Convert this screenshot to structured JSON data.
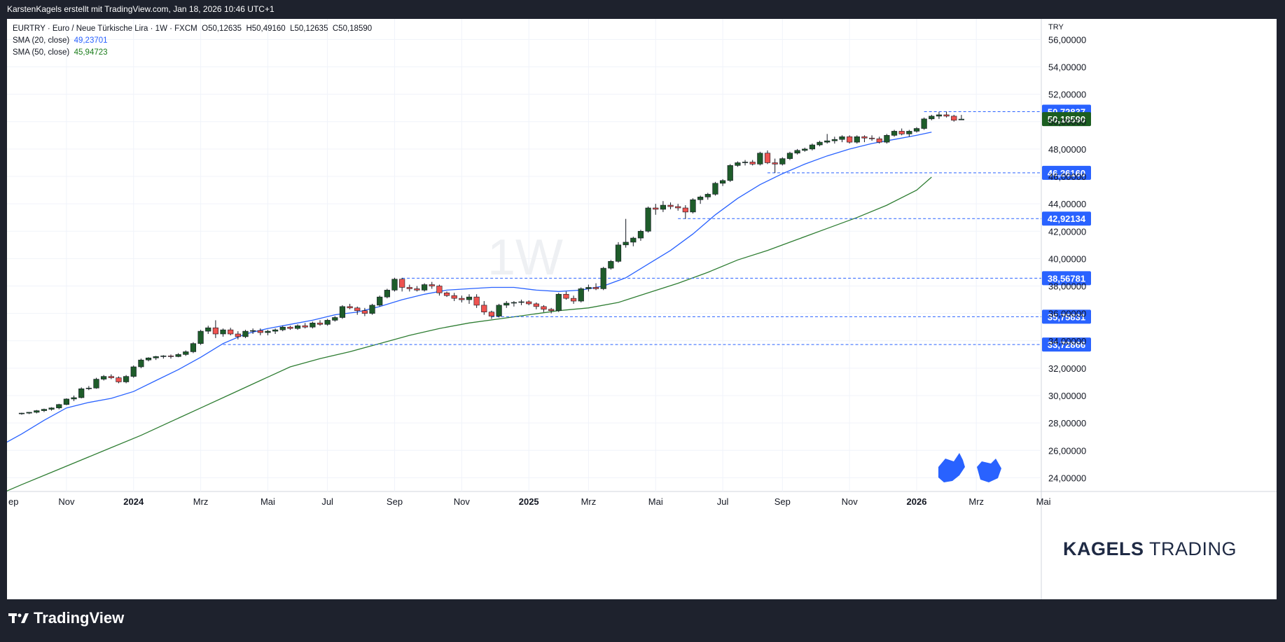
{
  "header": {
    "credit": "KarstenKagels erstellt mit TradingView.com, Jan 18, 2026 10:46 UTC+1"
  },
  "legend": {
    "symbol": "EURTRY · Euro  / Neue Türkische Lira · 1W · FXCM",
    "open": "O50,12635",
    "high": "H50,49160",
    "low": "L50,12635",
    "close": "C50,18590",
    "sma20_label": "SMA (20, close)",
    "sma20_value": "49,23701",
    "sma50_label": "SMA (50, close)",
    "sma50_value": "45,94723"
  },
  "watermark": "1W",
  "brand": {
    "bold": "KAGELS",
    "light": " TRADING"
  },
  "footer": {
    "logo_text": "TradingView"
  },
  "colors": {
    "up": "#1e5c2a",
    "down": "#ef5350",
    "sma20": "#2962ff",
    "sma50": "#2e7d32",
    "level_line": "#2962ff",
    "level_label_bg": "#2962ff",
    "last_price_bg": "#1b5e20"
  },
  "chart_data": {
    "type": "candlestick",
    "timeframe": "1W",
    "currency": "TRY",
    "ylim": [
      23,
      57.5
    ],
    "y_ticks": [
      "56,00000",
      "54,00000",
      "52,00000",
      "50,00000",
      "48,00000",
      "46,00000",
      "44,00000",
      "42,00000",
      "40,00000",
      "38,00000",
      "36,00000",
      "34,00000",
      "32,00000",
      "30,00000",
      "28,00000",
      "26,00000",
      "24,00000"
    ],
    "x_ticks": [
      {
        "label": "ep",
        "week": -3
      },
      {
        "label": "Nov",
        "week": 6
      },
      {
        "label": "2024",
        "week": 15,
        "bold": true
      },
      {
        "label": "Mrz",
        "week": 24
      },
      {
        "label": "Mai",
        "week": 33
      },
      {
        "label": "Jul",
        "week": 41
      },
      {
        "label": "Sep",
        "week": 50
      },
      {
        "label": "Nov",
        "week": 59
      },
      {
        "label": "2025",
        "week": 68,
        "bold": true
      },
      {
        "label": "Mrz",
        "week": 76
      },
      {
        "label": "Mai",
        "week": 85
      },
      {
        "label": "Jul",
        "week": 94
      },
      {
        "label": "Sep",
        "week": 102
      },
      {
        "label": "Nov",
        "week": 111
      },
      {
        "label": "2026",
        "week": 120,
        "bold": true
      },
      {
        "label": "Mrz",
        "week": 128
      },
      {
        "label": "Mai",
        "week": 137
      }
    ],
    "levels": [
      {
        "value": 50.72837,
        "label": "50,72837",
        "start_week": 121
      },
      {
        "value": 46.2616,
        "label": "46,26160",
        "start_week": 100
      },
      {
        "value": 42.92134,
        "label": "42,92134",
        "start_week": 88
      },
      {
        "value": 38.56781,
        "label": "38,56781",
        "start_week": 51
      },
      {
        "value": 35.75831,
        "label": "35,75831",
        "start_week": 63
      },
      {
        "value": 33.72866,
        "label": "33,72866",
        "start_week": 27
      }
    ],
    "last_price": {
      "value": 50.1859,
      "label": "50,18590"
    },
    "candles": [
      [
        28.7,
        28.75,
        28.6,
        28.72
      ],
      [
        28.72,
        28.8,
        28.65,
        28.78
      ],
      [
        28.78,
        28.95,
        28.7,
        28.9
      ],
      [
        28.9,
        29.05,
        28.8,
        29.0
      ],
      [
        29.0,
        29.15,
        28.9,
        29.1
      ],
      [
        29.1,
        29.4,
        29.0,
        29.35
      ],
      [
        29.35,
        29.8,
        29.3,
        29.75
      ],
      [
        29.75,
        30.0,
        29.6,
        29.85
      ],
      [
        29.85,
        30.6,
        29.8,
        30.5
      ],
      [
        30.5,
        30.7,
        30.4,
        30.55
      ],
      [
        30.55,
        31.3,
        30.5,
        31.2
      ],
      [
        31.2,
        31.5,
        31.1,
        31.4
      ],
      [
        31.4,
        31.55,
        31.2,
        31.3
      ],
      [
        31.3,
        31.4,
        30.9,
        31.0
      ],
      [
        31.0,
        31.5,
        30.9,
        31.4
      ],
      [
        31.4,
        32.2,
        31.3,
        32.1
      ],
      [
        32.1,
        32.7,
        32.0,
        32.6
      ],
      [
        32.6,
        32.8,
        32.5,
        32.75
      ],
      [
        32.75,
        32.9,
        32.6,
        32.85
      ],
      [
        32.85,
        32.95,
        32.7,
        32.9
      ],
      [
        32.9,
        33.0,
        32.7,
        32.85
      ],
      [
        32.85,
        33.1,
        32.8,
        33.0
      ],
      [
        33.0,
        33.3,
        32.9,
        33.2
      ],
      [
        33.2,
        33.9,
        33.1,
        33.8
      ],
      [
        33.8,
        34.8,
        33.7,
        34.7
      ],
      [
        34.7,
        35.1,
        34.5,
        34.95
      ],
      [
        34.95,
        35.5,
        34.2,
        34.5
      ],
      [
        34.5,
        34.9,
        34.3,
        34.8
      ],
      [
        34.8,
        34.95,
        34.4,
        34.5
      ],
      [
        34.5,
        34.7,
        34.1,
        34.3
      ],
      [
        34.3,
        34.8,
        34.2,
        34.7
      ],
      [
        34.7,
        34.9,
        34.5,
        34.75
      ],
      [
        34.75,
        34.9,
        34.4,
        34.6
      ],
      [
        34.6,
        34.8,
        34.4,
        34.7
      ],
      [
        34.7,
        34.9,
        34.5,
        34.8
      ],
      [
        34.8,
        35.1,
        34.7,
        35.0
      ],
      [
        35.0,
        35.1,
        34.8,
        34.9
      ],
      [
        34.9,
        35.2,
        34.8,
        35.1
      ],
      [
        35.1,
        35.3,
        34.9,
        35.0
      ],
      [
        35.0,
        35.4,
        34.9,
        35.3
      ],
      [
        35.3,
        35.5,
        35.1,
        35.2
      ],
      [
        35.2,
        35.6,
        35.1,
        35.5
      ],
      [
        35.5,
        35.8,
        35.4,
        35.7
      ],
      [
        35.7,
        36.6,
        35.6,
        36.5
      ],
      [
        36.5,
        36.7,
        36.3,
        36.4
      ],
      [
        36.4,
        36.5,
        35.9,
        36.2
      ],
      [
        36.2,
        36.4,
        35.8,
        36.0
      ],
      [
        36.0,
        36.7,
        35.9,
        36.6
      ],
      [
        36.6,
        37.3,
        36.5,
        37.2
      ],
      [
        37.2,
        37.8,
        37.1,
        37.7
      ],
      [
        37.7,
        38.6,
        37.6,
        38.5
      ],
      [
        38.5,
        38.6,
        37.6,
        37.9
      ],
      [
        37.9,
        38.1,
        37.6,
        37.8
      ],
      [
        37.8,
        38.0,
        37.6,
        37.7
      ],
      [
        37.7,
        38.2,
        37.6,
        38.1
      ],
      [
        38.1,
        38.3,
        37.8,
        38.0
      ],
      [
        38.0,
        38.1,
        37.3,
        37.5
      ],
      [
        37.5,
        37.6,
        37.2,
        37.3
      ],
      [
        37.3,
        37.5,
        36.9,
        37.1
      ],
      [
        37.1,
        37.3,
        36.8,
        37.0
      ],
      [
        37.0,
        37.4,
        36.7,
        37.2
      ],
      [
        37.2,
        37.4,
        36.4,
        36.6
      ],
      [
        36.6,
        36.9,
        35.9,
        36.1
      ],
      [
        36.1,
        36.2,
        35.6,
        35.8
      ],
      [
        35.8,
        36.7,
        35.7,
        36.6
      ],
      [
        36.6,
        36.9,
        36.4,
        36.75
      ],
      [
        36.75,
        36.9,
        36.5,
        36.8
      ],
      [
        36.8,
        37.0,
        36.6,
        36.85
      ],
      [
        36.85,
        36.95,
        36.6,
        36.7
      ],
      [
        36.7,
        36.8,
        36.3,
        36.5
      ],
      [
        36.5,
        36.6,
        36.1,
        36.3
      ],
      [
        36.3,
        36.4,
        36.0,
        36.2
      ],
      [
        36.2,
        37.5,
        36.1,
        37.4
      ],
      [
        37.4,
        37.6,
        37.0,
        37.1
      ],
      [
        37.1,
        37.3,
        36.7,
        36.9
      ],
      [
        36.9,
        37.9,
        36.8,
        37.8
      ],
      [
        37.8,
        38.1,
        37.6,
        37.9
      ],
      [
        37.9,
        38.2,
        37.7,
        37.8
      ],
      [
        37.8,
        39.4,
        37.7,
        39.3
      ],
      [
        39.3,
        39.9,
        39.2,
        39.8
      ],
      [
        39.8,
        41.2,
        39.7,
        41.0
      ],
      [
        41.0,
        42.9,
        40.8,
        41.2
      ],
      [
        41.2,
        41.6,
        40.9,
        41.5
      ],
      [
        41.5,
        42.1,
        41.3,
        42.0
      ],
      [
        42.0,
        43.8,
        41.9,
        43.7
      ],
      [
        43.7,
        44.0,
        43.2,
        43.6
      ],
      [
        43.6,
        44.2,
        43.4,
        43.9
      ],
      [
        43.9,
        44.1,
        43.6,
        43.8
      ],
      [
        43.8,
        44.0,
        43.5,
        43.7
      ],
      [
        43.7,
        43.9,
        42.9,
        43.4
      ],
      [
        43.4,
        44.4,
        43.3,
        44.3
      ],
      [
        44.3,
        44.6,
        44.0,
        44.5
      ],
      [
        44.5,
        44.8,
        44.3,
        44.7
      ],
      [
        44.7,
        45.6,
        44.6,
        45.5
      ],
      [
        45.5,
        45.8,
        45.3,
        45.7
      ],
      [
        45.7,
        46.9,
        45.6,
        46.8
      ],
      [
        46.8,
        47.1,
        46.7,
        47.0
      ],
      [
        47.0,
        47.2,
        46.8,
        47.05
      ],
      [
        47.05,
        47.2,
        46.8,
        46.9
      ],
      [
        46.9,
        47.8,
        46.8,
        47.7
      ],
      [
        47.7,
        47.9,
        46.9,
        47.0
      ],
      [
        47.0,
        47.3,
        46.26,
        46.9
      ],
      [
        46.9,
        47.4,
        46.8,
        47.3
      ],
      [
        47.3,
        47.8,
        47.2,
        47.7
      ],
      [
        47.7,
        48.0,
        47.6,
        47.9
      ],
      [
        47.9,
        48.1,
        47.8,
        48.0
      ],
      [
        48.0,
        48.4,
        47.9,
        48.3
      ],
      [
        48.3,
        48.6,
        48.2,
        48.5
      ],
      [
        48.5,
        49.1,
        48.4,
        48.6
      ],
      [
        48.6,
        48.9,
        48.4,
        48.7
      ],
      [
        48.7,
        49.0,
        48.5,
        48.9
      ],
      [
        48.9,
        49.0,
        48.4,
        48.5
      ],
      [
        48.5,
        49.0,
        48.4,
        48.9
      ],
      [
        48.9,
        49.0,
        48.5,
        48.8
      ],
      [
        48.8,
        49.0,
        48.6,
        48.75
      ],
      [
        48.75,
        48.9,
        48.4,
        48.5
      ],
      [
        48.5,
        49.1,
        48.4,
        49.0
      ],
      [
        49.0,
        49.4,
        48.9,
        49.3
      ],
      [
        49.3,
        49.5,
        49.0,
        49.1
      ],
      [
        49.1,
        49.4,
        48.9,
        49.3
      ],
      [
        49.3,
        49.6,
        49.2,
        49.5
      ],
      [
        49.5,
        50.3,
        49.4,
        50.2
      ],
      [
        50.2,
        50.5,
        50.1,
        50.4
      ],
      [
        50.4,
        50.7,
        50.2,
        50.5
      ],
      [
        50.5,
        50.73,
        50.3,
        50.4
      ],
      [
        50.4,
        50.5,
        50.0,
        50.1
      ],
      [
        50.12635,
        50.4916,
        50.12635,
        50.1859
      ]
    ],
    "sma20": [
      [
        -3,
        26.3
      ],
      [
        0,
        27.2
      ],
      [
        3,
        28.2
      ],
      [
        6,
        29.1
      ],
      [
        9,
        29.5
      ],
      [
        12,
        29.8
      ],
      [
        15,
        30.3
      ],
      [
        18,
        31.1
      ],
      [
        21,
        31.9
      ],
      [
        24,
        32.8
      ],
      [
        27,
        33.8
      ],
      [
        30,
        34.5
      ],
      [
        33,
        34.9
      ],
      [
        36,
        35.2
      ],
      [
        39,
        35.5
      ],
      [
        42,
        35.9
      ],
      [
        45,
        36.1
      ],
      [
        48,
        36.5
      ],
      [
        51,
        37.0
      ],
      [
        54,
        37.4
      ],
      [
        57,
        37.7
      ],
      [
        60,
        37.8
      ],
      [
        63,
        37.9
      ],
      [
        66,
        37.9
      ],
      [
        69,
        37.7
      ],
      [
        72,
        37.6
      ],
      [
        75,
        37.7
      ],
      [
        78,
        38.0
      ],
      [
        81,
        38.6
      ],
      [
        84,
        39.6
      ],
      [
        87,
        40.6
      ],
      [
        90,
        41.8
      ],
      [
        93,
        43.2
      ],
      [
        96,
        44.4
      ],
      [
        99,
        45.4
      ],
      [
        102,
        46.2
      ],
      [
        105,
        46.9
      ],
      [
        108,
        47.5
      ],
      [
        111,
        48.0
      ],
      [
        114,
        48.4
      ],
      [
        117,
        48.7
      ],
      [
        120,
        49.0
      ],
      [
        122,
        49.237
      ]
    ],
    "sma50": [
      [
        -3,
        22.8
      ],
      [
        0,
        23.5
      ],
      [
        4,
        24.4
      ],
      [
        8,
        25.3
      ],
      [
        12,
        26.2
      ],
      [
        16,
        27.1
      ],
      [
        20,
        28.1
      ],
      [
        24,
        29.1
      ],
      [
        28,
        30.1
      ],
      [
        32,
        31.1
      ],
      [
        36,
        32.1
      ],
      [
        40,
        32.7
      ],
      [
        44,
        33.2
      ],
      [
        48,
        33.8
      ],
      [
        52,
        34.4
      ],
      [
        56,
        34.9
      ],
      [
        60,
        35.3
      ],
      [
        64,
        35.6
      ],
      [
        68,
        35.9
      ],
      [
        72,
        36.2
      ],
      [
        76,
        36.4
      ],
      [
        80,
        36.8
      ],
      [
        84,
        37.5
      ],
      [
        88,
        38.2
      ],
      [
        92,
        39.0
      ],
      [
        96,
        39.9
      ],
      [
        100,
        40.6
      ],
      [
        104,
        41.4
      ],
      [
        108,
        42.2
      ],
      [
        112,
        43.0
      ],
      [
        116,
        43.9
      ],
      [
        120,
        45.0
      ],
      [
        122,
        45.947
      ]
    ]
  }
}
